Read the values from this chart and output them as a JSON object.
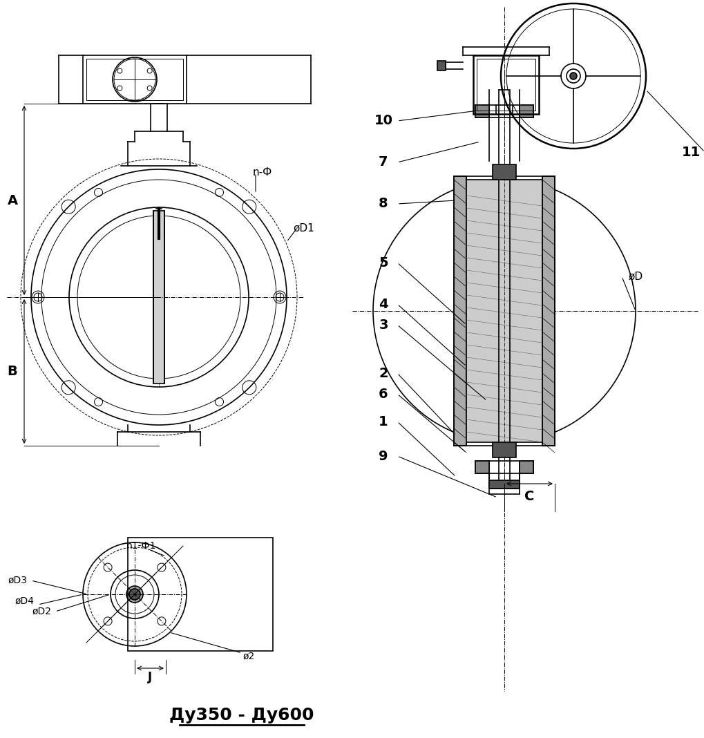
{
  "title": "Ду350 - Ду600",
  "background_color": "#ffffff",
  "line_color": "#000000",
  "line_width": 1.2,
  "dim_labels": {
    "A": "A",
    "B": "B",
    "C": "C",
    "J": "J",
    "n_phi": "n-Ф",
    "phi_D1": "øD1",
    "phi_D": "øD",
    "n1_phi1": "n1-Ф1",
    "phi_D2": "øD2",
    "phi_D3": "øD3",
    "phi_D4": "øD4",
    "phi_2": "ø2"
  },
  "part_numbers": [
    "1",
    "2",
    "3",
    "4",
    "5",
    "6",
    "7",
    "8",
    "9",
    "10",
    "11"
  ],
  "fig_width": 10.19,
  "fig_height": 10.68
}
